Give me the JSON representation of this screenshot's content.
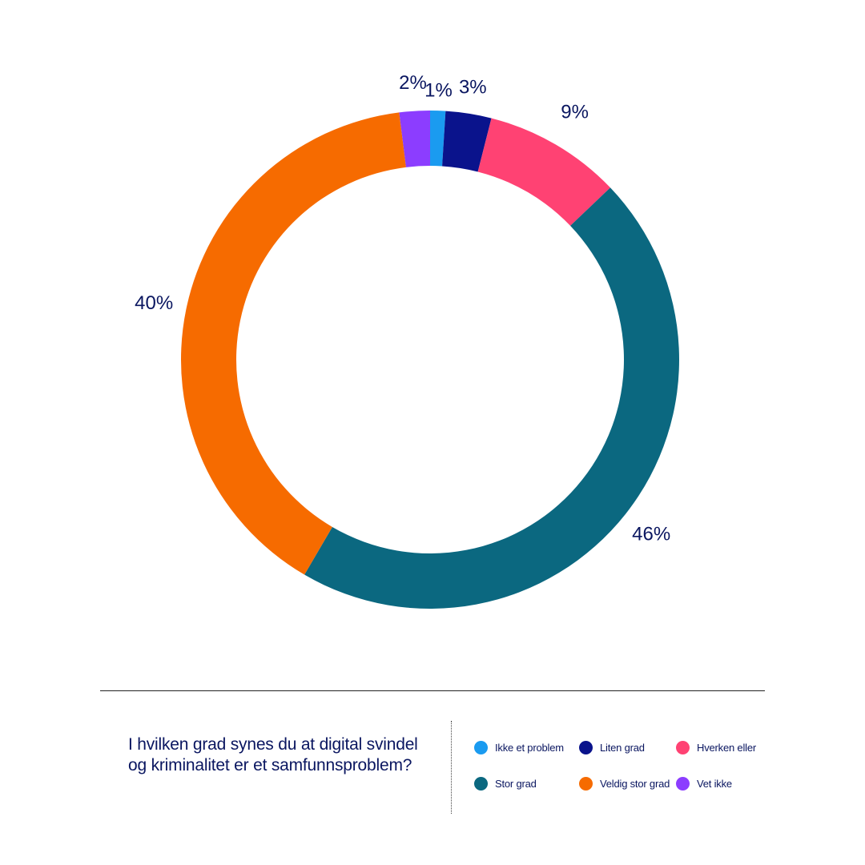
{
  "chart_data": {
    "type": "pie",
    "categories": [
      "Ikke et problem",
      "Liten grad",
      "Hverken eller",
      "Stor grad",
      "Veldig stor grad",
      "Vet ikke"
    ],
    "values": [
      1,
      3,
      9,
      46,
      40,
      2
    ],
    "value_labels": [
      "1%",
      "3%",
      "9%",
      "46%",
      "40%",
      "2%"
    ],
    "colors": [
      "#1a9bf0",
      "#0a138c",
      "#ff4273",
      "#0b6880",
      "#f66b00",
      "#8c3dff"
    ],
    "title": "I hvilken grad synes du at digital svindel og kriminalitet er et samfunnsproblem?",
    "legend": "bottom-right",
    "donut": true
  },
  "question": "I hvilken grad synes du at digital svindel og kriminalitet er et samfunnsproblem?",
  "legend_items": [
    {
      "label": "Ikke et problem",
      "color": "#1a9bf0"
    },
    {
      "label": "Liten grad",
      "color": "#0a138c"
    },
    {
      "label": "Hverken eller",
      "color": "#ff4273"
    },
    {
      "label": "Stor grad",
      "color": "#0b6880"
    },
    {
      "label": "Veldig stor grad",
      "color": "#f66b00"
    },
    {
      "label": "Vet ikke",
      "color": "#8c3dff"
    }
  ]
}
